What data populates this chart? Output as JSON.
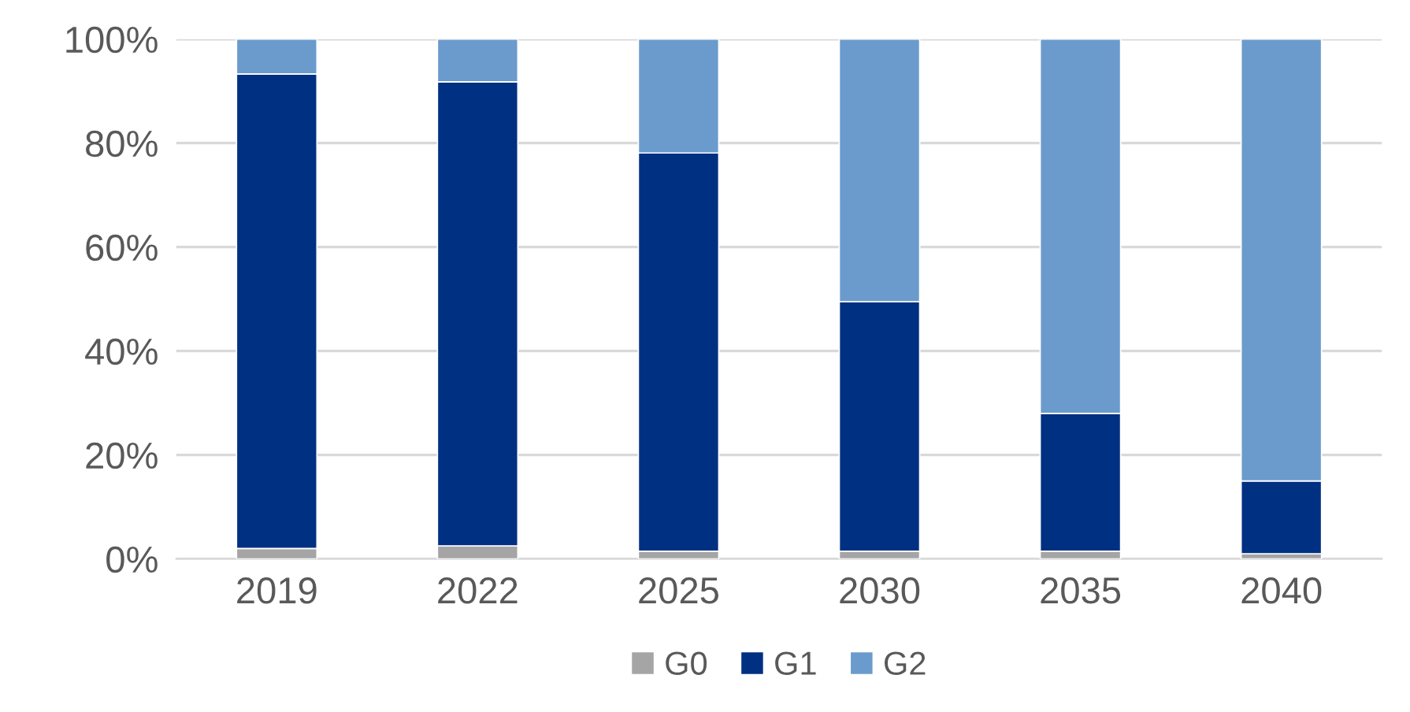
{
  "chart_data": {
    "type": "bar",
    "stacked": true,
    "categories": [
      "2019",
      "2022",
      "2025",
      "2030",
      "2035",
      "2040"
    ],
    "series": [
      {
        "name": "G0",
        "color": "#a5a5a5",
        "values": [
          2,
          2.5,
          1.5,
          1.5,
          1.5,
          1
        ]
      },
      {
        "name": "G1",
        "color": "#003082",
        "values": [
          91.3,
          89.3,
          76.6,
          48,
          26.5,
          14
        ]
      },
      {
        "name": "G2",
        "color": "#6a9bcc",
        "values": [
          6.7,
          8.2,
          21.9,
          50.5,
          72,
          85
        ]
      }
    ],
    "ylim": [
      0,
      100
    ],
    "yticks": [
      {
        "value": 0,
        "label": "0%"
      },
      {
        "value": 20,
        "label": "20%"
      },
      {
        "value": 40,
        "label": "40%"
      },
      {
        "value": 60,
        "label": "60%"
      },
      {
        "value": 80,
        "label": "80%"
      },
      {
        "value": 100,
        "label": "100%"
      }
    ],
    "grid": "y",
    "legend": "bottom"
  }
}
